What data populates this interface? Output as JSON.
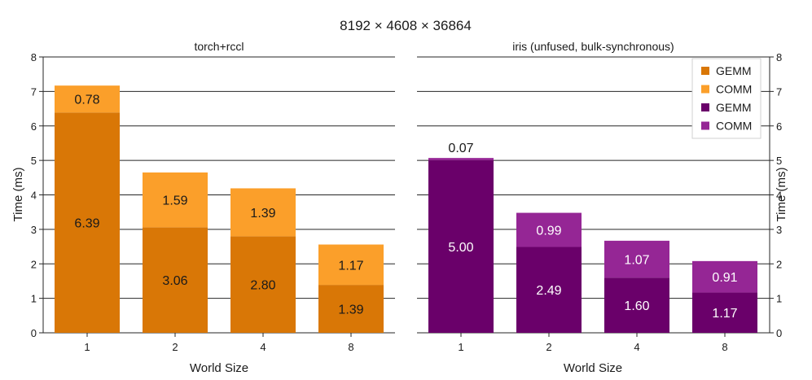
{
  "chart_data": {
    "type": "bar",
    "stacked": true,
    "title": "8192 × 4608 × 36864",
    "xlabel": "World Size",
    "ylabel": "Time (ms)",
    "ylim": [
      0,
      8
    ],
    "yticks": [
      0,
      1,
      2,
      3,
      4,
      5,
      6,
      7,
      8
    ],
    "grid": "y",
    "legend_placement": "top-right",
    "panels": [
      {
        "id": "torch",
        "title": "torch+rccl",
        "categories": [
          "1",
          "2",
          "4",
          "8"
        ],
        "series": [
          {
            "name": "GEMM",
            "values": [
              6.39,
              3.06,
              2.8,
              1.39
            ],
            "labels": [
              "6.39",
              "3.06",
              "2.80",
              "1.39"
            ],
            "color": "#d97706",
            "label_color": "#1a1a1a"
          },
          {
            "name": "COMM",
            "values": [
              0.78,
              1.59,
              1.39,
              1.17
            ],
            "labels": [
              "0.78",
              "1.59",
              "1.39",
              "1.17"
            ],
            "color": "#fb9f2a",
            "label_color": "#1a1a1a"
          }
        ]
      },
      {
        "id": "iris",
        "title": "iris (unfused, bulk-synchronous)",
        "categories": [
          "1",
          "2",
          "4",
          "8"
        ],
        "series": [
          {
            "name": "GEMM",
            "values": [
              5.0,
              2.49,
              1.6,
              1.17
            ],
            "labels": [
              "5.00",
              "2.49",
              "1.60",
              "1.17"
            ],
            "color": "#6a006a",
            "label_color": "#ffffff"
          },
          {
            "name": "COMM",
            "values": [
              0.07,
              0.99,
              1.07,
              0.91
            ],
            "labels": [
              "0.07",
              "0.99",
              "1.07",
              "0.91"
            ],
            "color": "#952695",
            "label_color": "#ffffff"
          }
        ]
      }
    ],
    "legend": [
      {
        "name": "GEMM",
        "color": "#d97706"
      },
      {
        "name": "COMM",
        "color": "#fb9f2a"
      },
      {
        "name": "GEMM",
        "color": "#6a006a"
      },
      {
        "name": "COMM",
        "color": "#952695"
      }
    ]
  }
}
